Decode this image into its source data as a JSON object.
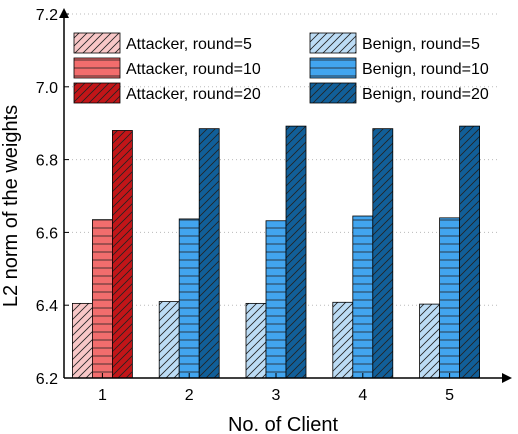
{
  "chart_data": {
    "type": "bar",
    "categories": [
      "1",
      "2",
      "3",
      "4",
      "5"
    ],
    "xlabel": "No. of Client",
    "ylabel": "L2 norm of the weights",
    "ylim": [
      6.2,
      7.2
    ],
    "yticks": [
      "6.2",
      "6.4",
      "6.6",
      "6.8",
      "7.0",
      "7.2"
    ],
    "grid": true,
    "legend_position": "top",
    "series": [
      {
        "name": "Attacker, round=5",
        "group": "attacker",
        "pattern": "diagonal",
        "color": "#f8c7c7",
        "values": [
          6.405,
          null,
          null,
          null,
          null
        ]
      },
      {
        "name": "Attacker, round=10",
        "group": "attacker",
        "pattern": "horizontal",
        "color": "#f26d6d",
        "values": [
          6.635,
          null,
          null,
          null,
          null
        ]
      },
      {
        "name": "Attacker, round=20",
        "group": "attacker",
        "pattern": "diagonal",
        "color": "#c21518",
        "values": [
          6.88,
          null,
          null,
          null,
          null
        ]
      },
      {
        "name": "Benign, round=5",
        "group": "benign",
        "pattern": "diagonal",
        "color": "#bcdcf5",
        "values": [
          null,
          6.41,
          6.405,
          6.408,
          6.403
        ]
      },
      {
        "name": "Benign, round=10",
        "group": "benign",
        "pattern": "horizontal",
        "color": "#42a5ef",
        "values": [
          null,
          6.637,
          6.632,
          6.645,
          6.64
        ]
      },
      {
        "name": "Benign, round=20",
        "group": "benign",
        "pattern": "diagonal",
        "color": "#115f99",
        "values": [
          null,
          6.885,
          6.892,
          6.885,
          6.892
        ]
      }
    ]
  }
}
